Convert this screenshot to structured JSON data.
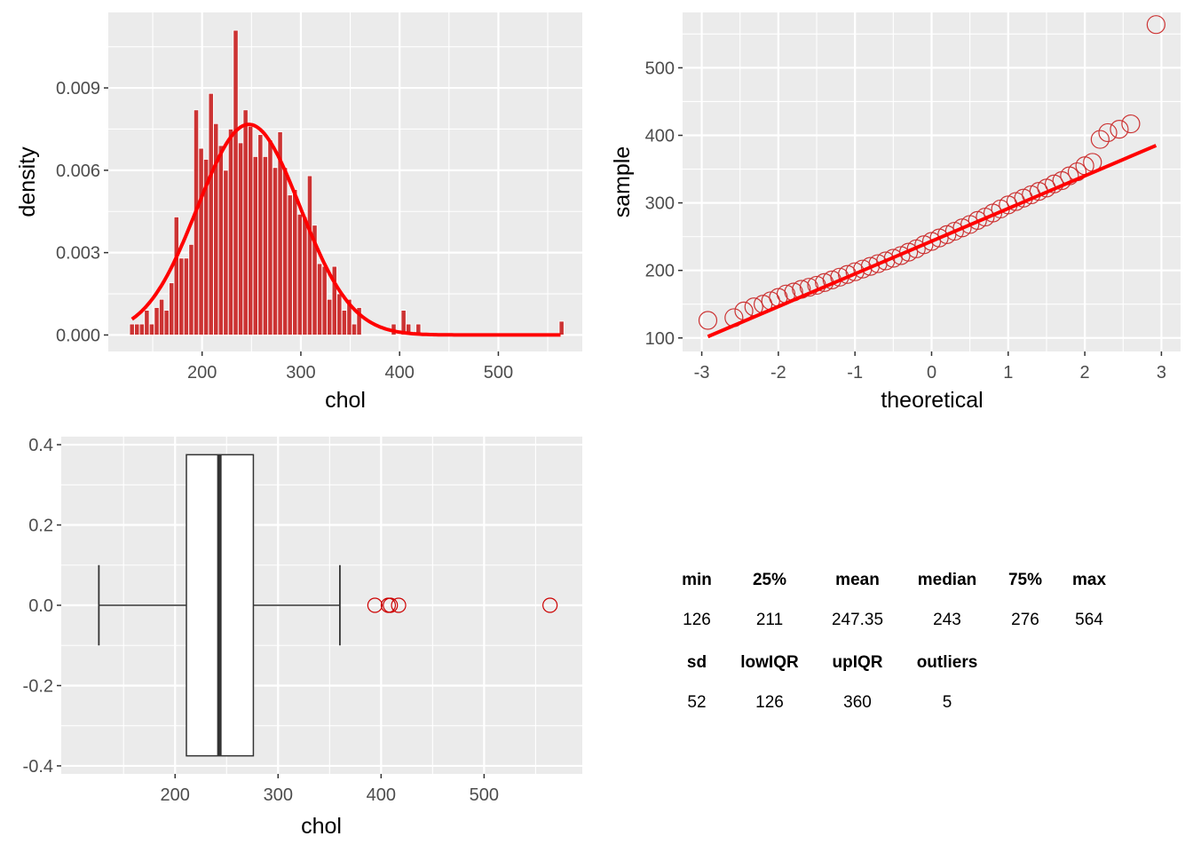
{
  "chart_data": [
    {
      "type": "bar",
      "subtype": "histogram-with-density",
      "xlabel": "chol",
      "ylabel": "density",
      "xlim": [
        105,
        585
      ],
      "ylim": [
        -0.0006,
        0.01175
      ],
      "x_ticks": [
        200,
        300,
        400,
        500
      ],
      "y_ticks": [
        0.0,
        0.003,
        0.006,
        0.009
      ],
      "y_tick_labels": [
        "0.000",
        "0.003",
        "0.006",
        "0.009"
      ],
      "bar_width": 4.8,
      "bins": [
        {
          "x": 129,
          "y": 0.0004
        },
        {
          "x": 134,
          "y": 0.0004
        },
        {
          "x": 139,
          "y": 0.0004
        },
        {
          "x": 144,
          "y": 0.0009
        },
        {
          "x": 149,
          "y": 0.0004
        },
        {
          "x": 154,
          "y": 0.001
        },
        {
          "x": 159,
          "y": 0.0013
        },
        {
          "x": 164,
          "y": 0.0009
        },
        {
          "x": 169,
          "y": 0.0019
        },
        {
          "x": 174,
          "y": 0.0043
        },
        {
          "x": 179,
          "y": 0.0028
        },
        {
          "x": 184,
          "y": 0.0028
        },
        {
          "x": 189,
          "y": 0.0033
        },
        {
          "x": 194,
          "y": 0.0082
        },
        {
          "x": 199,
          "y": 0.0068
        },
        {
          "x": 204,
          "y": 0.0064
        },
        {
          "x": 209,
          "y": 0.0088
        },
        {
          "x": 214,
          "y": 0.0077
        },
        {
          "x": 219,
          "y": 0.0069
        },
        {
          "x": 224,
          "y": 0.006
        },
        {
          "x": 229,
          "y": 0.0075
        },
        {
          "x": 234,
          "y": 0.0111
        },
        {
          "x": 239,
          "y": 0.007
        },
        {
          "x": 244,
          "y": 0.0082
        },
        {
          "x": 249,
          "y": 0.0076
        },
        {
          "x": 254,
          "y": 0.0065
        },
        {
          "x": 259,
          "y": 0.0073
        },
        {
          "x": 264,
          "y": 0.0065
        },
        {
          "x": 269,
          "y": 0.0071
        },
        {
          "x": 274,
          "y": 0.0061
        },
        {
          "x": 279,
          "y": 0.0074
        },
        {
          "x": 284,
          "y": 0.0061
        },
        {
          "x": 289,
          "y": 0.0051
        },
        {
          "x": 294,
          "y": 0.0053
        },
        {
          "x": 299,
          "y": 0.0044
        },
        {
          "x": 304,
          "y": 0.0043
        },
        {
          "x": 309,
          "y": 0.0058
        },
        {
          "x": 314,
          "y": 0.004
        },
        {
          "x": 319,
          "y": 0.0026
        },
        {
          "x": 324,
          "y": 0.0025
        },
        {
          "x": 329,
          "y": 0.0013
        },
        {
          "x": 334,
          "y": 0.0025
        },
        {
          "x": 339,
          "y": 0.0015
        },
        {
          "x": 344,
          "y": 0.0009
        },
        {
          "x": 349,
          "y": 0.0013
        },
        {
          "x": 354,
          "y": 0.0004
        },
        {
          "x": 359,
          "y": 0.001
        },
        {
          "x": 394,
          "y": 0.0004
        },
        {
          "x": 404,
          "y": 0.0009
        },
        {
          "x": 409,
          "y": 0.0004
        },
        {
          "x": 419,
          "y": 0.0004
        },
        {
          "x": 564,
          "y": 0.0005
        }
      ],
      "density_curve": {
        "mean": 247.35,
        "sd": 52,
        "x_range": [
          129,
          564
        ],
        "color": "#ff0000"
      },
      "bar_color": "#cc3333",
      "grid": true
    },
    {
      "type": "scatter",
      "subtype": "qq-plot",
      "xlabel": "theoretical",
      "ylabel": "sample",
      "xlim": [
        -3.25,
        3.25
      ],
      "ylim": [
        80,
        582
      ],
      "x_ticks": [
        -3,
        -2,
        -1,
        0,
        1,
        2,
        3
      ],
      "y_ticks": [
        100,
        200,
        300,
        400,
        500
      ],
      "points": [
        [
          -2.92,
          126
        ],
        [
          -2.58,
          130
        ],
        [
          -2.45,
          140
        ],
        [
          -2.32,
          146
        ],
        [
          -2.2,
          150
        ],
        [
          -2.1,
          155
        ],
        [
          -2.0,
          160
        ],
        [
          -1.9,
          165
        ],
        [
          -1.8,
          168
        ],
        [
          -1.7,
          172
        ],
        [
          -1.6,
          175
        ],
        [
          -1.5,
          178
        ],
        [
          -1.4,
          182
        ],
        [
          -1.3,
          186
        ],
        [
          -1.2,
          190
        ],
        [
          -1.1,
          194
        ],
        [
          -1.0,
          198
        ],
        [
          -0.9,
          202
        ],
        [
          -0.8,
          206
        ],
        [
          -0.7,
          210
        ],
        [
          -0.6,
          214
        ],
        [
          -0.5,
          218
        ],
        [
          -0.4,
          222
        ],
        [
          -0.3,
          227
        ],
        [
          -0.2,
          232
        ],
        [
          -0.1,
          238
        ],
        [
          0.0,
          243
        ],
        [
          0.1,
          248
        ],
        [
          0.2,
          253
        ],
        [
          0.3,
          258
        ],
        [
          0.4,
          263
        ],
        [
          0.5,
          268
        ],
        [
          0.6,
          274
        ],
        [
          0.7,
          279
        ],
        [
          0.8,
          285
        ],
        [
          0.9,
          291
        ],
        [
          1.0,
          297
        ],
        [
          1.1,
          302
        ],
        [
          1.2,
          307
        ],
        [
          1.3,
          312
        ],
        [
          1.4,
          317
        ],
        [
          1.5,
          322
        ],
        [
          1.6,
          328
        ],
        [
          1.7,
          333
        ],
        [
          1.8,
          340
        ],
        [
          1.9,
          346
        ],
        [
          2.0,
          355
        ],
        [
          2.1,
          360
        ],
        [
          2.2,
          394
        ],
        [
          2.3,
          404
        ],
        [
          2.45,
          409
        ],
        [
          2.6,
          417
        ],
        [
          2.93,
          564
        ]
      ],
      "reference_line": {
        "from": [
          -2.92,
          102
        ],
        "to": [
          2.93,
          385
        ],
        "color": "#ff0000"
      },
      "point_color": "#cc3333",
      "grid": true
    },
    {
      "type": "box",
      "xlabel": "chol",
      "ylabel": "",
      "xlim": [
        105,
        585
      ],
      "ylim": [
        -0.42,
        0.42
      ],
      "x_ticks": [
        200,
        300,
        400,
        500
      ],
      "y_ticks": [
        -0.4,
        -0.2,
        0.0,
        0.2,
        0.4
      ],
      "y_tick_labels": [
        "-0.4",
        "-0.2",
        "0.0",
        "0.2",
        "0.4"
      ],
      "whisker_low": 126,
      "q1": 211,
      "median": 243,
      "q3": 276,
      "whisker_high": 360,
      "box_half_height": 0.375,
      "whisker_cap_half_height": 0.1,
      "outliers": [
        394,
        407,
        409,
        417,
        564
      ],
      "outlier_color": "#cc0000",
      "grid": true
    }
  ],
  "stats": {
    "header1": [
      "min",
      "25%",
      "mean",
      "median",
      "75%",
      "max"
    ],
    "values1": [
      "126",
      "211",
      "247.35",
      "243",
      "276",
      "564"
    ],
    "header2": [
      "sd",
      "lowIQR",
      "upIQR",
      "outliers"
    ],
    "values2": [
      "52",
      "126",
      "360",
      "5"
    ]
  }
}
